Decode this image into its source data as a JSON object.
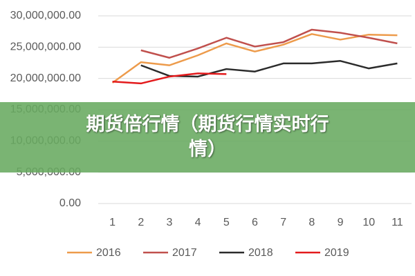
{
  "chart_data": {
    "type": "line",
    "categories": [
      "1",
      "2",
      "3",
      "4",
      "5",
      "6",
      "7",
      "8",
      "9",
      "10",
      "11"
    ],
    "series": [
      {
        "name": "2016",
        "color": "#ed9b4b",
        "values": [
          19300000.0,
          22600000.0,
          22100000.0,
          23700000.0,
          25600000.0,
          24300000.0,
          25400000.0,
          27100000.0,
          26200000.0,
          27000000.0,
          26900000.0
        ]
      },
      {
        "name": "2017",
        "color": "#c0504d",
        "values": [
          null,
          24500000.0,
          23300000.0,
          24800000.0,
          26500000.0,
          25100000.0,
          25800000.0,
          27800000.0,
          27300000.0,
          26500000.0,
          25600000.0
        ]
      },
      {
        "name": "2018",
        "color": "#2b2b2b",
        "values": [
          null,
          22100000.0,
          20400000.0,
          20300000.0,
          21500000.0,
          21100000.0,
          22400000.0,
          22400000.0,
          22800000.0,
          21600000.0,
          22400000.0
        ]
      },
      {
        "name": "2019",
        "color": "#e31a1c",
        "values": [
          19500000.0,
          19200000.0,
          20300000.0,
          20800000.0,
          20700000.0,
          null,
          null,
          null,
          null,
          null,
          null
        ]
      }
    ],
    "ylim": [
      0,
      30000000
    ],
    "yticks": [
      {
        "value": 0,
        "label": "0.00"
      },
      {
        "value": 5000000,
        "label": "5,000,000.00"
      },
      {
        "value": 10000000,
        "label": "10,000,000.00"
      },
      {
        "value": 15000000,
        "label": "15,000,000.00"
      },
      {
        "value": 20000000,
        "label": "20,000,000.00"
      },
      {
        "value": 25000000,
        "label": "25,000,000.00"
      },
      {
        "value": 30000000,
        "label": "30,000,000.00"
      }
    ],
    "grid": true,
    "legend": "bottom"
  },
  "banner": {
    "title": "期货倍行情（期货行情实时行情）"
  }
}
